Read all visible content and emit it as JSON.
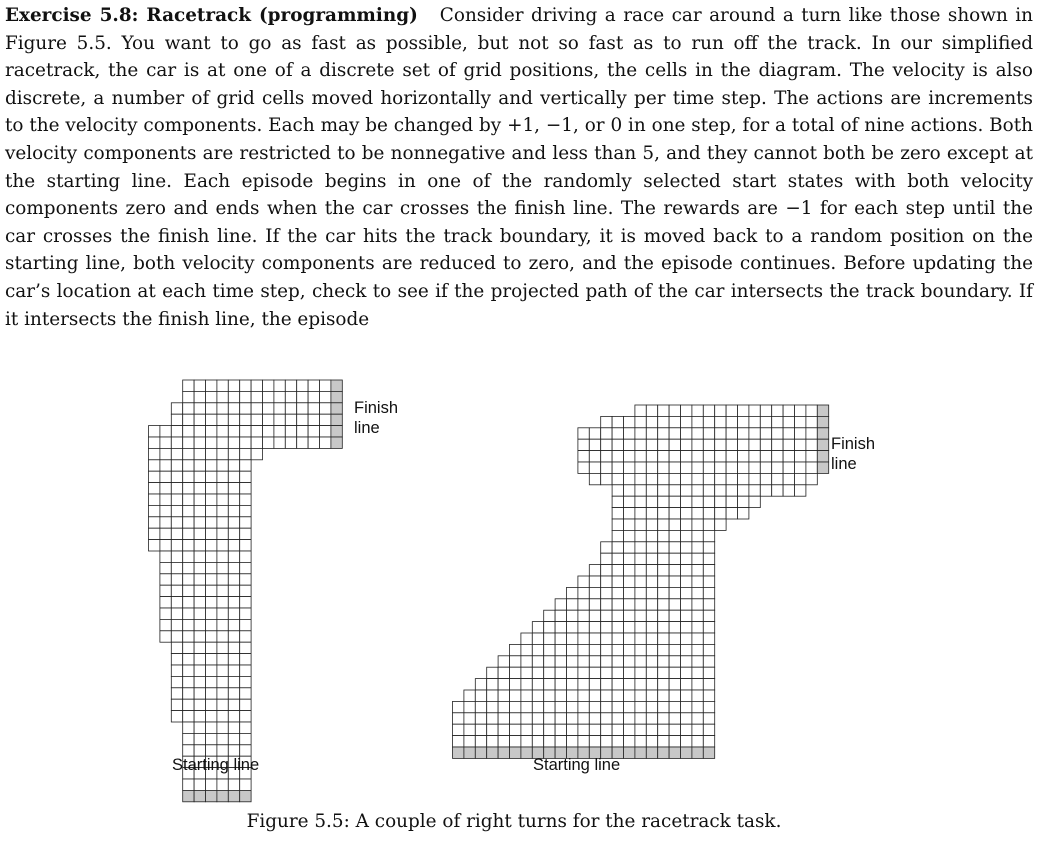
{
  "exercise": {
    "title": "Exercise 5.8: Racetrack (programming)",
    "body": "Consider driving a race car around a turn like those shown in Figure 5.5. You want to go as fast as possible, but not so fast as to run off the track. In our simplified racetrack, the car is at one of a discrete set of grid positions, the cells in the diagram. The velocity is also discrete, a number of grid cells moved horizontally and vertically per time step. The actions are increments to the velocity components. Each may be changed by +1, −1, or 0 in one step, for a total of nine actions. Both velocity components are restricted to be nonnegative and less than 5, and they cannot both be zero except at the starting line. Each episode begins in one of the randomly selected start states with both velocity components zero and ends when the car crosses the finish line. The rewards are −1 for each step until the car crosses the finish line. If the car hits the track boundary, it is moved back to a random position on the starting line, both velocity components are reduced to zero, and the episode continues. Before updating the car’s location at each time step, check to see if the projected path of the car intersects the track boundary. If it intersects the finish line, the episode"
  },
  "figure": {
    "track1": {
      "finish_label": "Finish\nline",
      "start_label": "Starting line"
    },
    "track2": {
      "finish_label": "Finish\nline",
      "start_label": "Starting line"
    },
    "caption": "Figure 5.5: A couple of right turns for the racetrack task.",
    "colors": {
      "track_cell": "#ffffff",
      "line_cell": "#c8c8c8",
      "grid": "#222222"
    }
  }
}
